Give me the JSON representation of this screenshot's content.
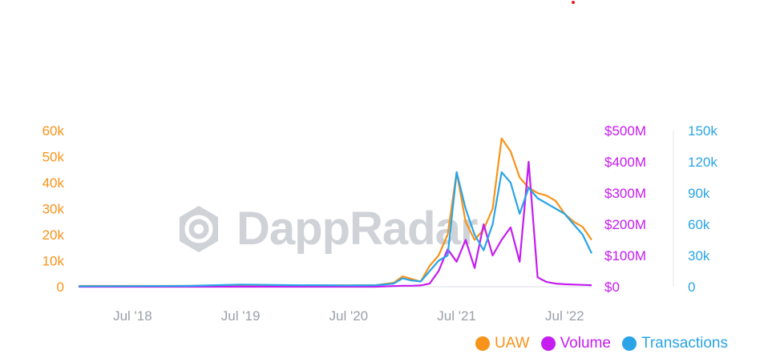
{
  "colors": {
    "uaw": "#f7931a",
    "volume": "#c51cf0",
    "transactions": "#2aa4e6",
    "grid": "#e6e6e6"
  },
  "watermark": {
    "text": "DappRadar"
  },
  "chart_data": {
    "type": "line",
    "title": "",
    "x_ticks": [
      "Jul '18",
      "Jul '19",
      "Jul '20",
      "Jul '21",
      "Jul '22"
    ],
    "x_range": [
      "2018-01",
      "2022-10"
    ],
    "axes": {
      "uaw": {
        "ticks": [
          "0",
          "10k",
          "20k",
          "30k",
          "40k",
          "50k",
          "60k"
        ],
        "range": [
          0,
          60000
        ]
      },
      "volume": {
        "ticks": [
          "$0",
          "$100M",
          "$200M",
          "$300M",
          "$400M",
          "$500M"
        ],
        "range": [
          0,
          500000000
        ]
      },
      "transactions": {
        "ticks": [
          "0",
          "30k",
          "60k",
          "90k",
          "120k",
          "150k"
        ],
        "range": [
          0,
          150000
        ]
      }
    },
    "legend_position": "bottom-right",
    "series": [
      {
        "name": "UAW",
        "axis": "uaw",
        "x": [
          "2018-01",
          "2018-07",
          "2019-01",
          "2019-07",
          "2020-01",
          "2020-07",
          "2020-10",
          "2020-12",
          "2021-01",
          "2021-02",
          "2021-03",
          "2021-04",
          "2021-05",
          "2021-06",
          "2021-07",
          "2021-08",
          "2021-09",
          "2021-10",
          "2021-11",
          "2021-12",
          "2022-01",
          "2022-02",
          "2022-03",
          "2022-04",
          "2022-05",
          "2022-06",
          "2022-07",
          "2022-08",
          "2022-09",
          "2022-10"
        ],
        "values": [
          300,
          300,
          300,
          400,
          400,
          500,
          600,
          1500,
          4000,
          3000,
          2000,
          8000,
          12000,
          20000,
          44000,
          25000,
          18000,
          22000,
          30000,
          57000,
          52000,
          42000,
          38000,
          36000,
          35000,
          33000,
          28000,
          25000,
          23000,
          18000
        ]
      },
      {
        "name": "Volume",
        "axis": "volume",
        "x": [
          "2018-01",
          "2018-07",
          "2019-01",
          "2019-07",
          "2020-01",
          "2020-07",
          "2020-10",
          "2020-12",
          "2021-01",
          "2021-02",
          "2021-03",
          "2021-04",
          "2021-05",
          "2021-06",
          "2021-07",
          "2021-08",
          "2021-09",
          "2021-10",
          "2021-11",
          "2021-12",
          "2022-01",
          "2022-02",
          "2022-03",
          "2022-04",
          "2022-05",
          "2022-06",
          "2022-07",
          "2022-08",
          "2022-09",
          "2022-10"
        ],
        "values": [
          0,
          0,
          0,
          0,
          0,
          0,
          0,
          2000000,
          3000000,
          3000000,
          4000000,
          10000000,
          50000000,
          120000000,
          80000000,
          150000000,
          60000000,
          200000000,
          100000000,
          150000000,
          190000000,
          80000000,
          400000000,
          30000000,
          15000000,
          10000000,
          8000000,
          7000000,
          6000000,
          5000000
        ]
      },
      {
        "name": "Transactions",
        "axis": "transactions",
        "x": [
          "2018-01",
          "2018-07",
          "2019-01",
          "2019-07",
          "2020-01",
          "2020-07",
          "2020-10",
          "2020-12",
          "2021-01",
          "2021-02",
          "2021-03",
          "2021-04",
          "2021-05",
          "2021-06",
          "2021-07",
          "2021-08",
          "2021-09",
          "2021-10",
          "2021-11",
          "2021-12",
          "2022-01",
          "2022-02",
          "2022-03",
          "2022-04",
          "2022-05",
          "2022-06",
          "2022-07",
          "2022-08",
          "2022-09",
          "2022-10"
        ],
        "values": [
          500,
          600,
          800,
          2000,
          1500,
          1200,
          1500,
          3000,
          8000,
          6000,
          5000,
          15000,
          25000,
          30000,
          110000,
          75000,
          50000,
          35000,
          60000,
          110000,
          100000,
          70000,
          95000,
          85000,
          80000,
          75000,
          70000,
          60000,
          50000,
          32000
        ]
      }
    ]
  },
  "legend": [
    {
      "label": "UAW",
      "color": "#f7931a"
    },
    {
      "label": "Volume",
      "color": "#c51cf0"
    },
    {
      "label": "Transactions",
      "color": "#2aa4e6"
    }
  ]
}
